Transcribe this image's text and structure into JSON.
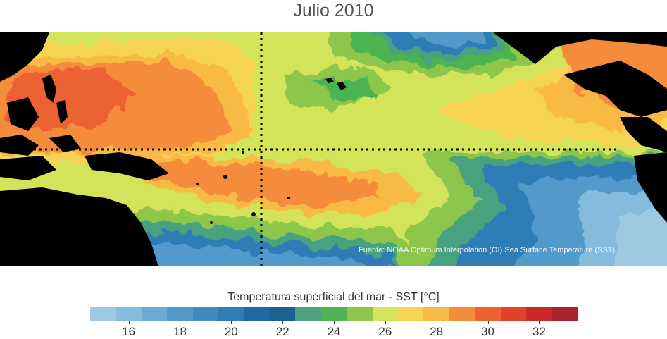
{
  "title": "Julio 2010",
  "credit": "Fuente: NOAA Optimum Interpolation (OI) Sea Surface Temperature (SST)",
  "legend": {
    "title": "Temperatura superficial del mar - SST  [°C]",
    "colors": [
      "#9ecae1",
      "#85bbdc",
      "#6aaad4",
      "#519aca",
      "#3f8bc0",
      "#2f7db6",
      "#2069a8",
      "#1a6295",
      "#4aa27f",
      "#4cb451",
      "#8cc74b",
      "#d4e45a",
      "#f6d453",
      "#f8ba45",
      "#f48c3a",
      "#ec6230",
      "#e0432a",
      "#cc2729",
      "#a9242a"
    ],
    "tick_values": [
      16,
      18,
      20,
      22,
      24,
      26,
      28,
      30,
      32
    ],
    "tick_labels": [
      "16",
      "18",
      "20",
      "22",
      "24",
      "26",
      "28",
      "30",
      "32"
    ],
    "range": [
      15,
      34
    ]
  }
}
